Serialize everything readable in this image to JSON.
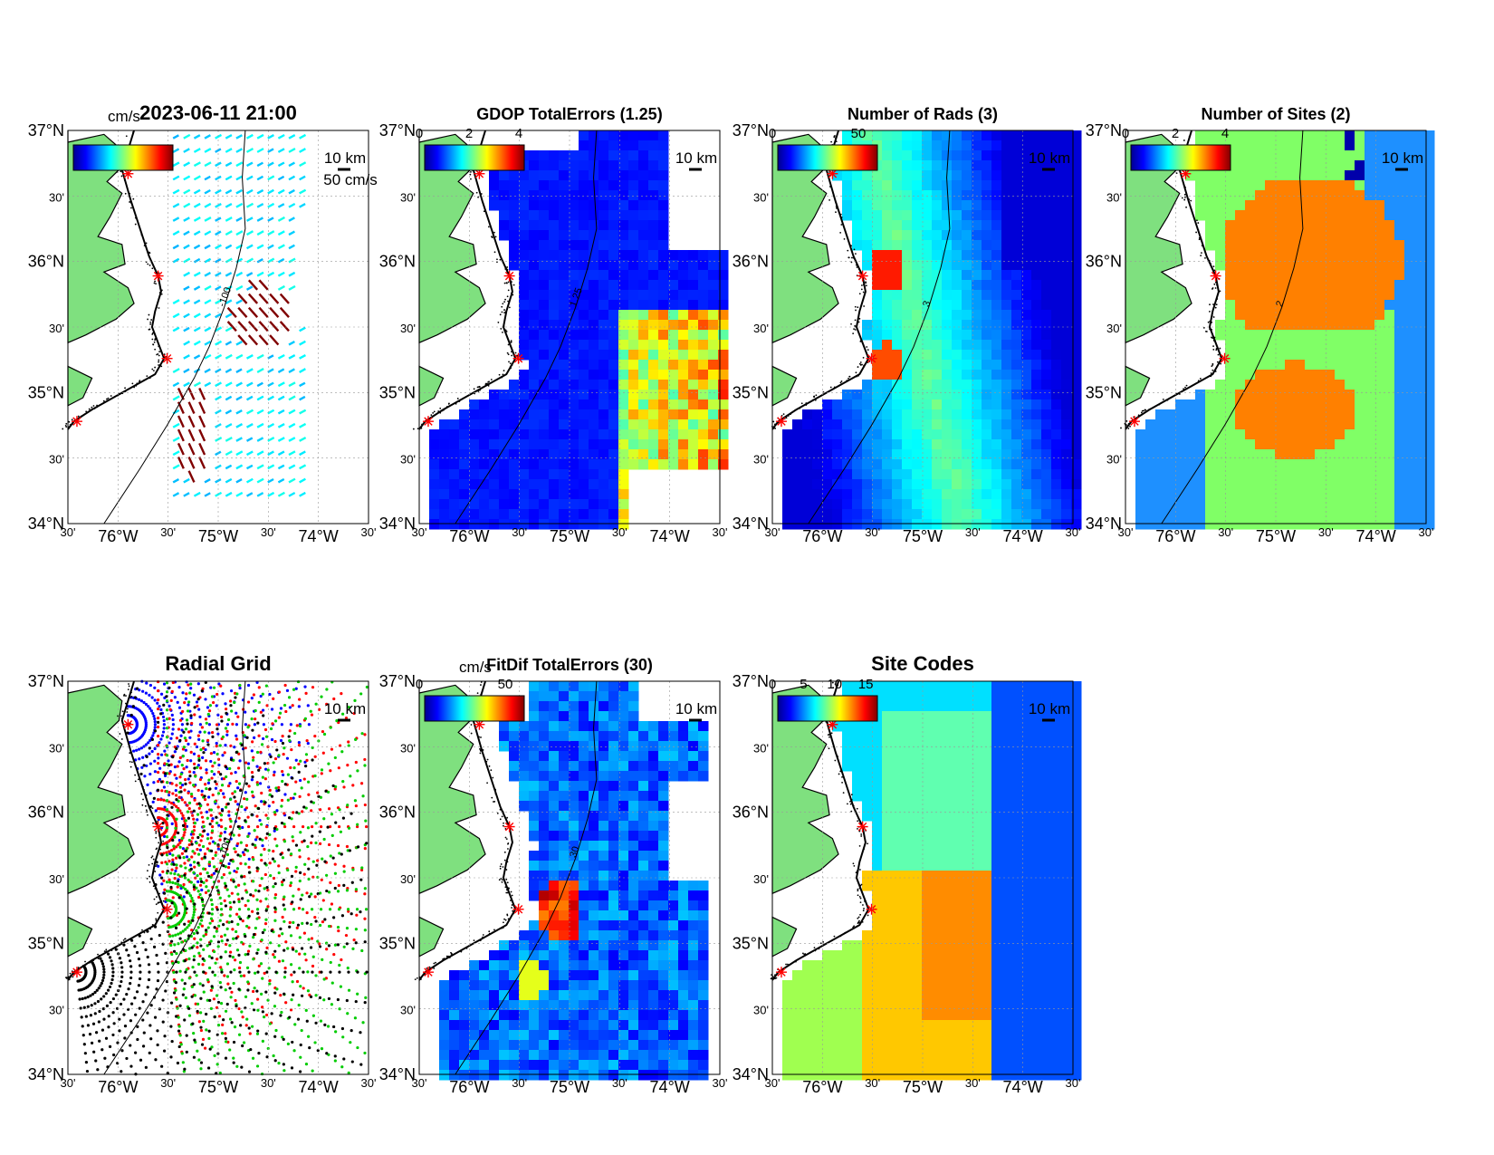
{
  "figure": {
    "timestamp": "2023-06-11 21:00",
    "lat_labels": [
      "37°N",
      "30'",
      "36°N",
      "30'",
      "35°N",
      "30'",
      "34°N"
    ],
    "lon_labels": [
      "30'",
      "76°W",
      "30'",
      "75°W",
      "30'",
      "74°W",
      "30'"
    ],
    "scale_label": "10 km",
    "vector_scale_label": "50 cm/s",
    "unit_label": "cm/s"
  },
  "panels": [
    {
      "id": "totals",
      "title": "2023-06-11 21:00",
      "colorbar": {
        "ticks": [],
        "unit": "cm/s"
      },
      "contours": [
        "-100"
      ]
    },
    {
      "id": "gdop",
      "title": "GDOP TotalErrors (1.25)",
      "colorbar": {
        "ticks": [
          "0",
          "2",
          "4"
        ]
      },
      "contours": [
        "1.25"
      ]
    },
    {
      "id": "rads",
      "title": "Number of Rads (3)",
      "colorbar": {
        "ticks": [
          "0",
          "50"
        ]
      },
      "contours": [
        "3"
      ]
    },
    {
      "id": "sites",
      "title": "Number of Sites (2)",
      "colorbar": {
        "ticks": [
          "0",
          "2",
          "4"
        ]
      },
      "contours": [
        "2"
      ]
    },
    {
      "id": "radialgrid",
      "title": "Radial Grid",
      "colorbar": null,
      "contours": [
        "-100"
      ]
    },
    {
      "id": "fitdif",
      "title": "FitDif TotalErrors (30)",
      "colorbar": {
        "ticks": [
          "0",
          "50"
        ],
        "unit": "cm/s"
      },
      "contours": [
        "30"
      ]
    },
    {
      "id": "sitecodes",
      "title": "Site Codes",
      "colorbar": {
        "ticks": [
          "0",
          "5",
          "10",
          "15"
        ]
      },
      "contours": []
    }
  ],
  "colors": {
    "land": "#7fe07f",
    "site_marker": "#ff0000",
    "grid": [
      "#0000ff",
      "#ff0000",
      "#00cc00",
      "#000000"
    ]
  }
}
